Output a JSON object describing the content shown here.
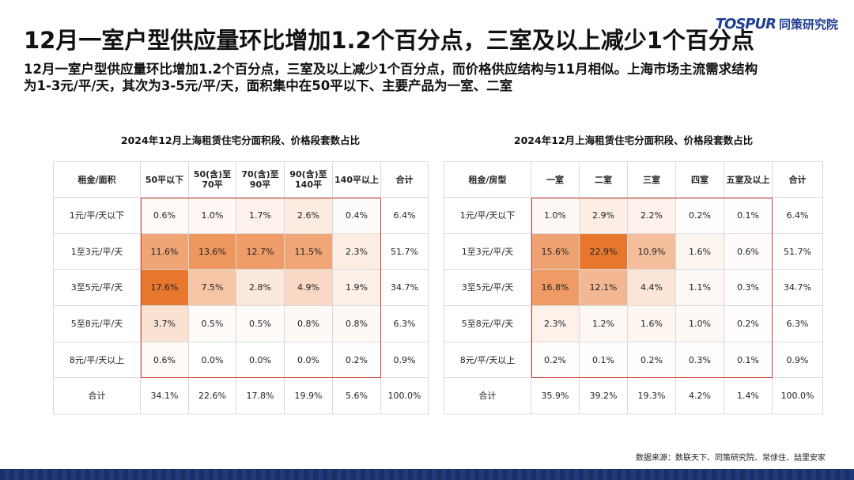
{
  "header": {
    "title": "12月一室户型供应量环比增加1.2个百分点，三室及以上减少1个百分点",
    "logo_mark": "TOSPUR",
    "logo_name": "同策研究院"
  },
  "subtitle": {
    "line1": "12月一室户型供应量环比增加1.2个百分点，三室及以上减少1个百分点，而价格供应结构与11月相似。上海市场主流需求结构",
    "line2": "为1-3元/平/天，其次为3-5元/平/天，面积集中在50平以下、主要产品为一室、二室"
  },
  "colors": {
    "heat_max": "#e8772e",
    "heat_min": "#ffffff",
    "highlight": "#d0453c",
    "brand": "#1f3f93"
  },
  "area_table": {
    "title": "2024年12月上海租赁住宅分面积段、价格段套数占比",
    "headers": [
      "租金/面积",
      "50平以下",
      "50(含)至70平",
      "70(含)至90平",
      "90(含)至140平",
      "140平以上",
      "合计"
    ],
    "rows": [
      {
        "label": "1元/平/天以下",
        "values": [
          "0.6%",
          "1.0%",
          "1.7%",
          "2.6%",
          "0.4%"
        ],
        "total": "6.4%"
      },
      {
        "label": "1至3元/平/天",
        "values": [
          "11.6%",
          "13.6%",
          "12.7%",
          "11.5%",
          "2.3%"
        ],
        "total": "51.7%"
      },
      {
        "label": "3至5元/平/天",
        "values": [
          "17.6%",
          "7.5%",
          "2.8%",
          "4.9%",
          "1.9%"
        ],
        "total": "34.7%"
      },
      {
        "label": "5至8元/平/天",
        "values": [
          "3.7%",
          "0.5%",
          "0.5%",
          "0.8%",
          "0.8%"
        ],
        "total": "6.3%"
      },
      {
        "label": "8元/平/天以上",
        "values": [
          "0.6%",
          "0.0%",
          "0.0%",
          "0.0%",
          "0.2%"
        ],
        "total": "0.9%"
      }
    ],
    "totals": {
      "label": "合计",
      "values": [
        "34.1%",
        "22.6%",
        "17.8%",
        "19.9%",
        "5.6%"
      ],
      "total": "100.0%"
    }
  },
  "room_table": {
    "title": "2024年12月上海租赁住宅分面积段、价格段套数占比",
    "headers": [
      "租金/房型",
      "一室",
      "二室",
      "三室",
      "四室",
      "五室及以上",
      "合计"
    ],
    "rows": [
      {
        "label": "1元/平/天以下",
        "values": [
          "1.0%",
          "2.9%",
          "2.2%",
          "0.2%",
          "0.1%"
        ],
        "total": "6.4%"
      },
      {
        "label": "1至3元/平/天",
        "values": [
          "15.6%",
          "22.9%",
          "10.9%",
          "1.6%",
          "0.6%"
        ],
        "total": "51.7%"
      },
      {
        "label": "3至5元/平/天",
        "values": [
          "16.8%",
          "12.1%",
          "4.4%",
          "1.1%",
          "0.3%"
        ],
        "total": "34.7%"
      },
      {
        "label": "5至8元/平/天",
        "values": [
          "2.3%",
          "1.2%",
          "1.6%",
          "1.0%",
          "0.2%"
        ],
        "total": "6.3%"
      },
      {
        "label": "8元/平/天以上",
        "values": [
          "0.2%",
          "0.1%",
          "0.2%",
          "0.3%",
          "0.1%"
        ],
        "total": "0.9%"
      }
    ],
    "totals": {
      "label": "合计",
      "values": [
        "35.9%",
        "39.2%",
        "19.3%",
        "4.2%",
        "1.4%"
      ],
      "total": "100.0%"
    }
  },
  "footer": {
    "source": "数据来源：数联天下、同策研究院、常俅住、喆里安家"
  }
}
